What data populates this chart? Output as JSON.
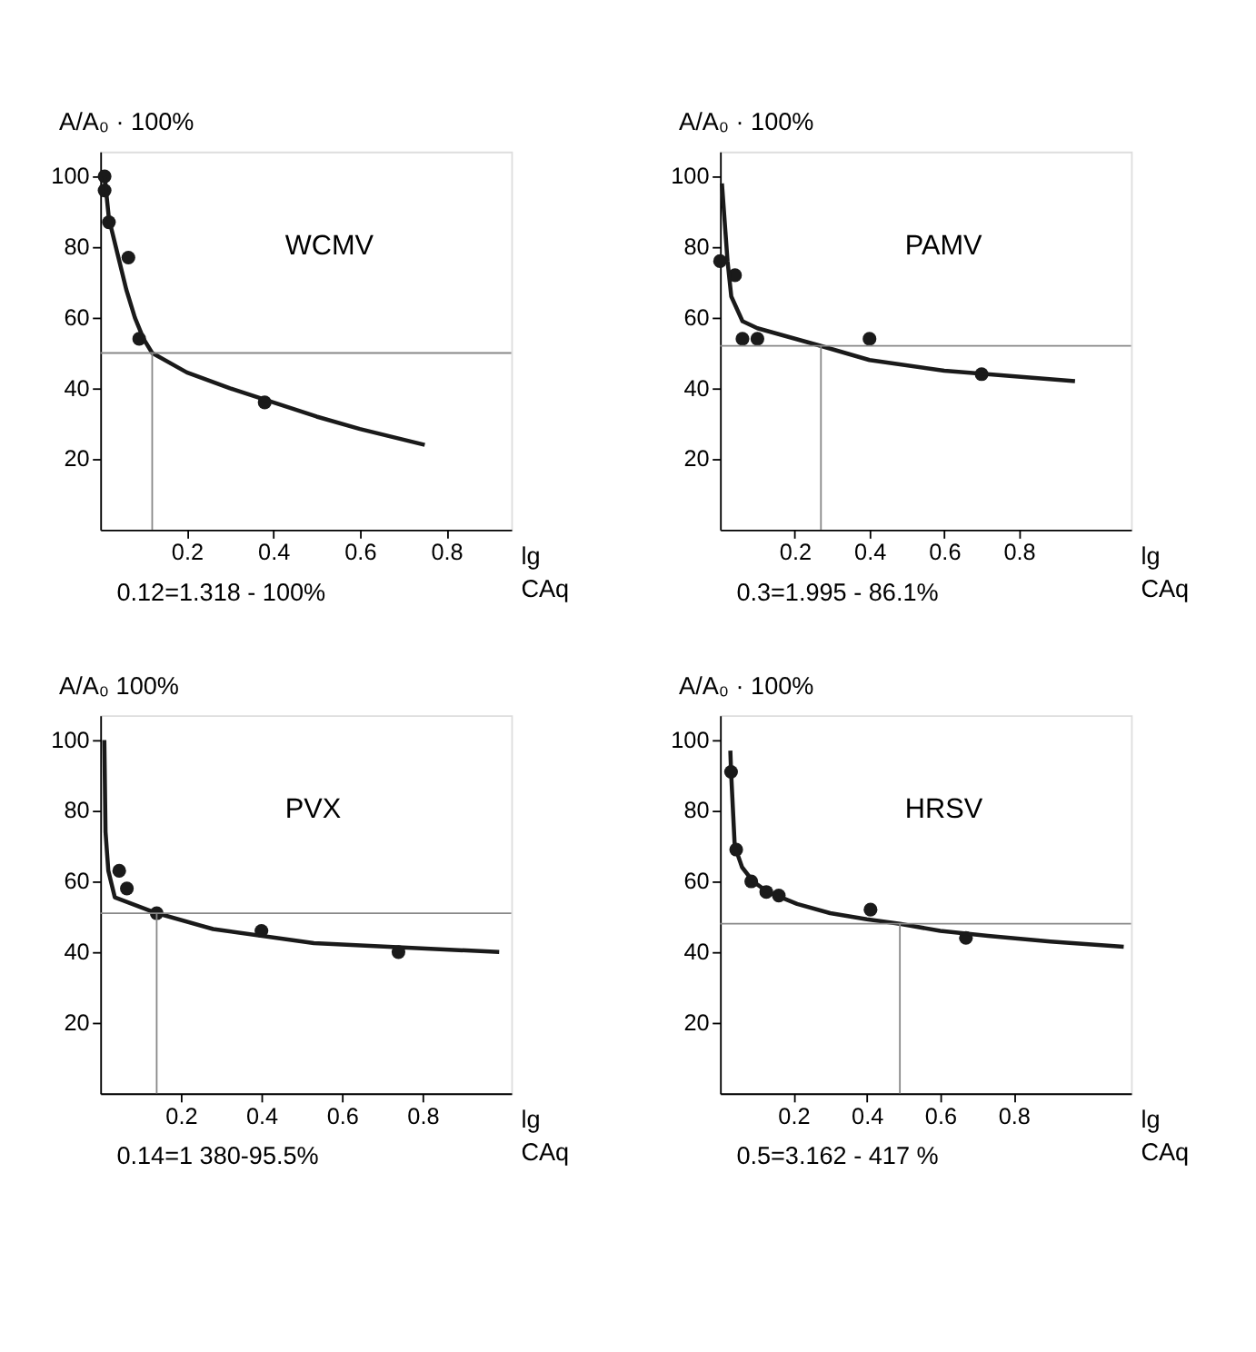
{
  "chart_data": [
    {
      "type": "scatter",
      "title": "WCMV",
      "ylabel": "A/A₀ · 100%",
      "xlabel": "lg CAq",
      "annotations": [
        "0.12=1.318 - 100%"
      ],
      "xlim": [
        0,
        0.95
      ],
      "ylim": [
        0,
        107
      ],
      "xticks": [
        0.2,
        0.4,
        0.6,
        0.8
      ],
      "yticks": [
        20,
        40,
        60,
        80,
        100
      ],
      "grid": false,
      "ref_lines": [
        {
          "axis": "y",
          "value": 50,
          "color": "#888888"
        },
        {
          "axis": "x",
          "value": 0.12,
          "color": "#888888"
        }
      ],
      "series": [
        {
          "marker": "circle",
          "color": "#1a1a1a",
          "x": [
            0.01,
            0.01,
            0.02,
            0.065,
            0.09,
            0.38
          ],
          "values": [
            100,
            96,
            87,
            77,
            54,
            36
          ]
        },
        {
          "type": "line",
          "color": "#1a1a1a",
          "line_style": "solid",
          "x": [
            0.01,
            0.02,
            0.04,
            0.06,
            0.08,
            0.1,
            0.12,
            0.2,
            0.3,
            0.4,
            0.5,
            0.6,
            0.75
          ],
          "values": [
            100,
            88,
            78,
            68,
            60,
            54,
            50,
            44.5,
            40,
            36,
            32,
            28.5,
            24
          ]
        }
      ]
    },
    {
      "type": "scatter",
      "title": "PAMV",
      "ylabel": "A/A₀ · 100%",
      "xlabel": "lg CAq",
      "annotations": [
        "0.3=1.995 - 86.1%"
      ],
      "xlim": [
        0,
        1.1
      ],
      "ylim": [
        0,
        107
      ],
      "xticks": [
        0.2,
        0.4,
        0.6,
        0.8
      ],
      "yticks": [
        20,
        40,
        60,
        80,
        100
      ],
      "grid": false,
      "ref_lines": [
        {
          "axis": "y",
          "value": 52,
          "color": "#888888"
        },
        {
          "axis": "x",
          "value": 0.27,
          "color": "#888888"
        }
      ],
      "series": [
        {
          "marker": "circle",
          "color": "#1a1a1a",
          "x": [
            0.0,
            0.04,
            0.06,
            0.1,
            0.4,
            0.7
          ],
          "values": [
            76,
            72,
            54,
            54,
            54,
            44
          ]
        },
        {
          "type": "line",
          "color": "#1a1a1a",
          "line_style": "solid",
          "x": [
            0.005,
            0.02,
            0.03,
            0.06,
            0.1,
            0.27,
            0.4,
            0.6,
            0.95
          ],
          "values": [
            98,
            76,
            66,
            59,
            57,
            52,
            48,
            45,
            42
          ]
        }
      ]
    },
    {
      "type": "scatter",
      "title": "PVX",
      "ylabel": "A/A₀ 100%",
      "xlabel": "lg CAq",
      "annotations": [
        "0.14=1 380-95.5%"
      ],
      "xlim": [
        0,
        1.02
      ],
      "ylim": [
        0,
        107
      ],
      "xticks": [
        0.2,
        0.4,
        0.6,
        0.8
      ],
      "yticks": [
        20,
        40,
        60,
        80,
        100
      ],
      "grid": false,
      "ref_lines": [
        {
          "axis": "y",
          "value": 51,
          "color": "#888888"
        },
        {
          "axis": "x",
          "value": 0.14,
          "color": "#888888"
        }
      ],
      "series": [
        {
          "marker": "circle",
          "color": "#1a1a1a",
          "x": [
            0.047,
            0.066,
            0.14,
            0.4,
            0.74
          ],
          "values": [
            63,
            58,
            51,
            46,
            40
          ]
        },
        {
          "type": "line",
          "color": "#1a1a1a",
          "line_style": "solid",
          "x": [
            0.01,
            0.013,
            0.02,
            0.036,
            0.14,
            0.28,
            0.53,
            0.99
          ],
          "values": [
            100,
            74,
            63,
            55.5,
            51,
            46.5,
            42.5,
            40
          ]
        }
      ]
    },
    {
      "type": "scatter",
      "title": "HRSV",
      "ylabel": "A/A₀ · 100%",
      "xlabel": "lg CAq",
      "annotations": [
        "0.5=3.162 - 417 %"
      ],
      "xlim": [
        0,
        1.12
      ],
      "ylim": [
        0,
        107
      ],
      "xticks": [
        0.2,
        0.4,
        0.6,
        0.8
      ],
      "yticks": [
        20,
        40,
        60,
        80,
        100
      ],
      "grid": false,
      "ref_lines": [
        {
          "axis": "y",
          "value": 48,
          "color": "#888888"
        },
        {
          "axis": "x",
          "value": 0.49,
          "color": "#888888"
        }
      ],
      "series": [
        {
          "marker": "circle",
          "color": "#1a1a1a",
          "x": [
            0.03,
            0.044,
            0.085,
            0.126,
            0.16,
            0.41,
            0.67
          ],
          "values": [
            91,
            69,
            60,
            57,
            56,
            52,
            44
          ]
        },
        {
          "type": "line",
          "color": "#1a1a1a",
          "line_style": "solid",
          "x": [
            0.028,
            0.03,
            0.04,
            0.06,
            0.09,
            0.13,
            0.21,
            0.3,
            0.4,
            0.49,
            0.6,
            0.73,
            0.9,
            1.1
          ],
          "values": [
            97,
            91,
            70,
            64,
            60,
            57,
            53.6,
            51,
            49.3,
            48,
            46,
            44.6,
            43,
            41.5
          ]
        }
      ]
    }
  ]
}
